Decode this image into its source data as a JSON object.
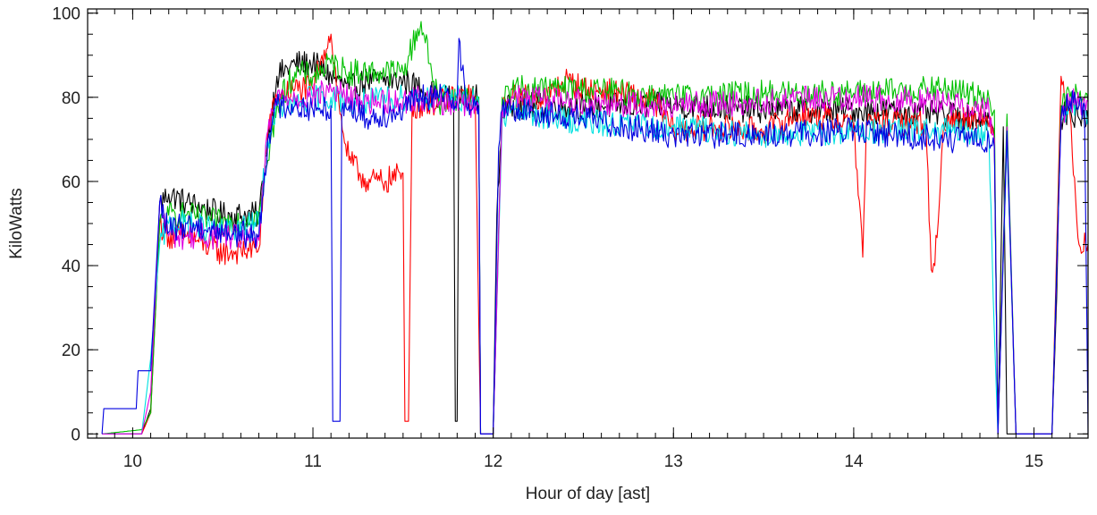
{
  "chart_data": {
    "type": "line",
    "title": "",
    "xlabel": "Hour of day [ast]",
    "ylabel": "KiloWatts",
    "xlim": [
      9.75,
      15.3
    ],
    "ylim": [
      -1,
      101
    ],
    "xticks": [
      10,
      11,
      12,
      13,
      14,
      15
    ],
    "xtick_labels": [
      "10",
      "11",
      "12",
      "13",
      "14",
      "15"
    ],
    "yticks": [
      0,
      20,
      40,
      60,
      80,
      100
    ],
    "ytick_labels": [
      "0",
      "20",
      "40",
      "60",
      "80",
      "100"
    ],
    "x_minor_step": 0.1,
    "y_minor_step": 5,
    "grid": false,
    "legend": "none",
    "series": [
      {
        "color": "#000000",
        "x": [
          9.83,
          10.05,
          10.1,
          10.15,
          10.2,
          10.3,
          10.5,
          10.7,
          10.75,
          10.8,
          10.9,
          11.0,
          11.1,
          11.2,
          11.3,
          11.5,
          11.6,
          11.7,
          11.78,
          11.79,
          11.8,
          11.81,
          11.83,
          11.9,
          11.92,
          11.93,
          12.0,
          12.02,
          12.05,
          12.1,
          12.5,
          13.0,
          13.5,
          14.0,
          14.5,
          14.75,
          14.78,
          14.8,
          14.83,
          14.85,
          14.9,
          14.95,
          15.0,
          15.05,
          15.1,
          15.12,
          15.15,
          15.2,
          15.25,
          15.3
        ],
        "y": [
          0,
          0,
          6,
          55,
          57,
          55,
          52,
          52,
          70,
          85,
          88,
          88,
          85,
          82,
          84,
          84,
          82,
          80,
          80,
          3,
          3,
          80,
          80,
          80,
          80,
          0,
          0,
          52,
          76,
          78,
          78,
          78,
          77,
          77,
          76,
          75,
          70,
          0,
          73,
          0,
          0,
          0,
          0,
          0,
          0,
          25,
          75,
          77,
          75,
          75
        ]
      },
      {
        "color": "#ff0000",
        "x": [
          9.83,
          10.05,
          10.1,
          10.15,
          10.2,
          10.3,
          10.5,
          10.7,
          10.75,
          10.8,
          10.9,
          11.0,
          11.05,
          11.1,
          11.15,
          11.2,
          11.3,
          11.4,
          11.5,
          11.51,
          11.53,
          11.55,
          11.6,
          11.7,
          11.8,
          11.9,
          11.93,
          12.0,
          12.05,
          12.1,
          12.3,
          12.4,
          12.5,
          12.7,
          12.9,
          13.0,
          13.2,
          13.5,
          13.7,
          14.0,
          14.05,
          14.07,
          14.1,
          14.2,
          14.4,
          14.43,
          14.45,
          14.5,
          14.7,
          14.75,
          14.78,
          14.8,
          14.85,
          14.9,
          14.95,
          15.0,
          15.05,
          15.1,
          15.15,
          15.2,
          15.25,
          15.3
        ],
        "y": [
          0,
          0,
          5,
          50,
          47,
          47,
          43,
          44,
          72,
          80,
          82,
          82,
          90,
          95,
          76,
          65,
          60,
          60,
          62,
          3,
          3,
          78,
          78,
          79,
          80,
          80,
          0,
          0,
          77,
          80,
          80,
          84,
          82,
          81,
          79,
          72,
          73,
          72,
          76,
          74,
          42,
          74,
          74,
          74,
          74,
          39,
          40,
          74,
          76,
          73,
          70,
          0,
          71,
          0,
          0,
          0,
          0,
          0,
          85,
          76,
          45,
          45
        ]
      },
      {
        "color": "#00c000",
        "x": [
          9.83,
          10.05,
          10.1,
          10.15,
          10.2,
          10.3,
          10.5,
          10.7,
          10.75,
          10.8,
          10.9,
          11.0,
          11.1,
          11.2,
          11.3,
          11.5,
          11.6,
          11.7,
          11.75,
          11.8,
          11.85,
          11.9,
          11.92,
          11.93,
          12.0,
          12.05,
          12.1,
          12.5,
          13.0,
          13.5,
          14.0,
          14.5,
          14.75,
          14.78,
          14.8,
          14.85,
          14.9,
          14.95,
          15.0,
          15.05,
          15.1,
          15.15,
          15.2,
          15.25,
          15.3
        ],
        "y": [
          0,
          1,
          5,
          50,
          52,
          52,
          50,
          52,
          65,
          78,
          86,
          85,
          88,
          86,
          86,
          86,
          98,
          78,
          80,
          80,
          81,
          79,
          80,
          0,
          0,
          80,
          82,
          82,
          80,
          81,
          81,
          82,
          80,
          77,
          0,
          76,
          0,
          0,
          0,
          0,
          0,
          78,
          80,
          80,
          79
        ]
      },
      {
        "color": "#00e0e0",
        "x": [
          9.83,
          10.05,
          10.1,
          10.15,
          10.2,
          10.3,
          10.5,
          10.7,
          10.75,
          10.8,
          10.9,
          11.0,
          11.1,
          11.2,
          11.3,
          11.5,
          11.6,
          11.7,
          11.8,
          11.9,
          11.92,
          11.93,
          12.0,
          12.05,
          12.1,
          12.5,
          13.0,
          13.5,
          14.0,
          14.5,
          14.75,
          14.78,
          14.8,
          14.85,
          14.9,
          14.95,
          15.0,
          15.05,
          15.1,
          15.15,
          15.2,
          15.25,
          15.3
        ],
        "y": [
          0,
          0,
          18,
          45,
          50,
          50,
          48,
          50,
          70,
          78,
          78,
          80,
          80,
          79,
          79,
          80,
          80,
          80,
          80,
          79,
          79,
          0,
          0,
          75,
          77,
          74,
          73,
          71,
          72,
          72,
          71,
          24,
          0,
          70,
          0,
          0,
          0,
          0,
          0,
          75,
          79,
          78,
          75
        ]
      },
      {
        "color": "#e000e0",
        "x": [
          9.83,
          10.05,
          10.1,
          10.15,
          10.2,
          10.3,
          10.5,
          10.7,
          10.75,
          10.8,
          10.9,
          11.0,
          11.1,
          11.2,
          11.3,
          11.5,
          11.6,
          11.7,
          11.8,
          11.9,
          11.92,
          11.93,
          12.0,
          12.05,
          12.1,
          12.5,
          13.0,
          13.5,
          14.0,
          14.5,
          14.75,
          14.78,
          14.8,
          14.85,
          14.9,
          14.95,
          15.0,
          15.05,
          15.1,
          15.15,
          15.2,
          15.25,
          15.3
        ],
        "y": [
          0,
          0,
          10,
          55,
          47,
          47,
          47,
          46,
          72,
          80,
          80,
          80,
          82,
          80,
          79,
          79,
          80,
          79,
          79,
          78,
          78,
          0,
          0,
          78,
          80,
          79,
          78,
          79,
          80,
          79,
          77,
          70,
          0,
          73,
          0,
          0,
          0,
          0,
          0,
          74,
          80,
          78,
          79
        ]
      },
      {
        "color": "#0000e0",
        "x": [
          9.83,
          9.84,
          10.0,
          10.02,
          10.03,
          10.05,
          10.1,
          10.15,
          10.2,
          10.3,
          10.5,
          10.7,
          10.75,
          10.8,
          10.9,
          11.0,
          11.05,
          11.1,
          11.11,
          11.15,
          11.16,
          11.2,
          11.3,
          11.5,
          11.6,
          11.7,
          11.8,
          11.81,
          11.85,
          11.9,
          11.92,
          11.93,
          12.0,
          12.03,
          12.05,
          12.1,
          12.5,
          13.0,
          13.5,
          14.0,
          14.5,
          14.75,
          14.78,
          14.8,
          14.85,
          14.9,
          14.95,
          15.0,
          15.05,
          15.1,
          15.15,
          15.2,
          15.25,
          15.28,
          15.3
        ],
        "y": [
          0,
          6,
          6,
          6,
          15,
          15,
          15,
          55,
          48,
          50,
          48,
          47,
          70,
          78,
          78,
          77,
          77,
          78,
          3,
          3,
          77,
          78,
          75,
          77,
          80,
          80,
          80,
          94,
          78,
          78,
          78,
          0,
          0,
          68,
          77,
          77,
          75,
          71,
          71,
          72,
          70,
          70,
          68,
          0,
          72,
          0,
          0,
          0,
          0,
          0,
          75,
          79,
          78,
          78,
          0
        ]
      }
    ]
  }
}
